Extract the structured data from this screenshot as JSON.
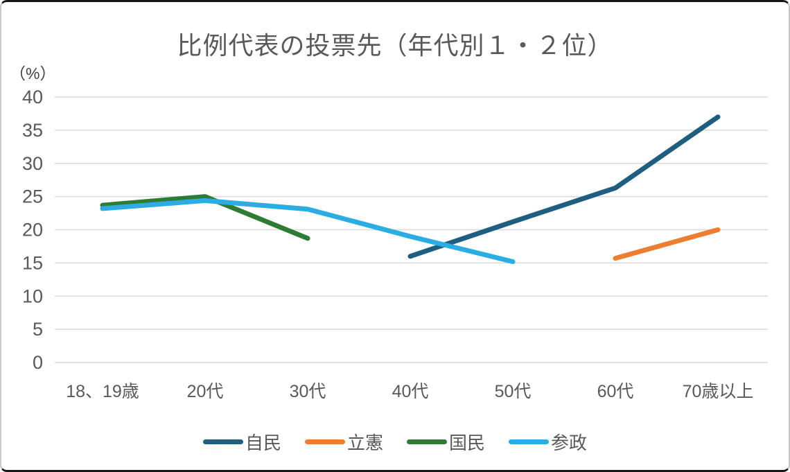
{
  "chart_data": {
    "type": "line",
    "title": "比例代表の投票先（年代別１・２位）",
    "ylabel": "（%）",
    "xlabel": "",
    "categories": [
      "18、19歳",
      "20代",
      "30代",
      "40代",
      "50代",
      "60代",
      "70歳以上"
    ],
    "series": [
      {
        "key": "jimin",
        "name": "自民",
        "color": "#1e5e80",
        "values": [
          null,
          null,
          null,
          16.0,
          21.2,
          26.3,
          37.0
        ]
      },
      {
        "key": "rikken",
        "name": "立憲",
        "color": "#ed7d31",
        "values": [
          null,
          null,
          null,
          null,
          null,
          15.7,
          20.0
        ]
      },
      {
        "key": "kokumin",
        "name": "国民",
        "color": "#2e7b33",
        "values": [
          23.7,
          25.0,
          18.7,
          null,
          null,
          null,
          null
        ]
      },
      {
        "key": "sansei",
        "name": "参政",
        "color": "#2bace2",
        "values": [
          23.2,
          24.4,
          23.1,
          19.0,
          15.2,
          null,
          null
        ]
      }
    ],
    "ylim": [
      0,
      40
    ],
    "yticks": [
      0,
      5,
      10,
      15,
      20,
      25,
      30,
      35,
      40
    ],
    "grid": true,
    "gridline_color": "#d9d9d9",
    "axis_text_color": "#595959",
    "legend_position": "bottom"
  }
}
